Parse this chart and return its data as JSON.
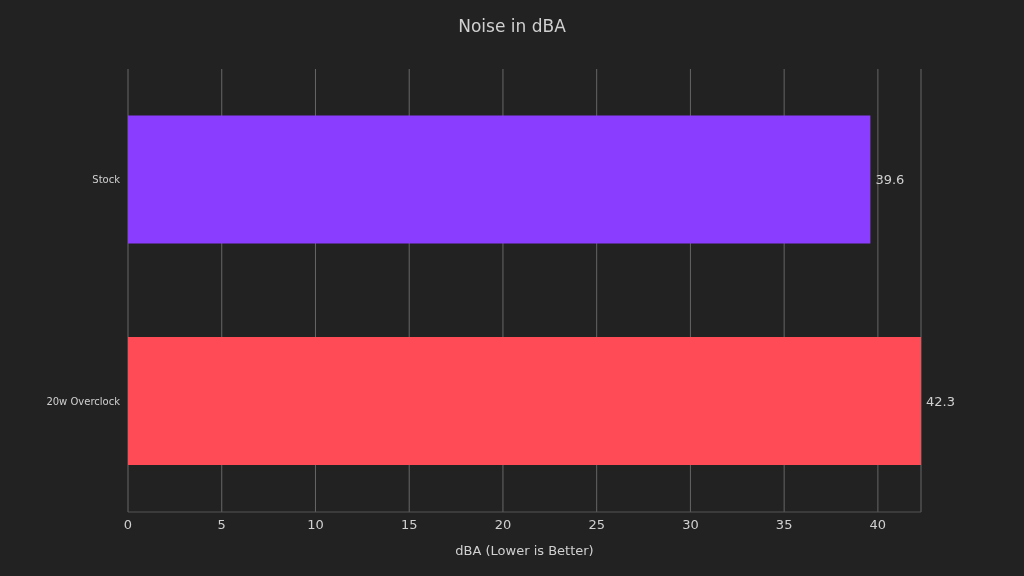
{
  "chart_data": {
    "type": "bar",
    "orientation": "horizontal",
    "title": "Noise in dBA",
    "xlabel": "dBA (Lower is Better)",
    "categories": [
      "Stock",
      "20w Overclock"
    ],
    "values": [
      39.6,
      42.3
    ],
    "colors": [
      "#8b3dff",
      "#ff4b55"
    ],
    "xlim": [
      0,
      42.3
    ],
    "xticks": [
      0,
      5,
      10,
      15,
      20,
      25,
      30,
      35,
      40
    ],
    "grid": "x",
    "data_labels": true
  }
}
